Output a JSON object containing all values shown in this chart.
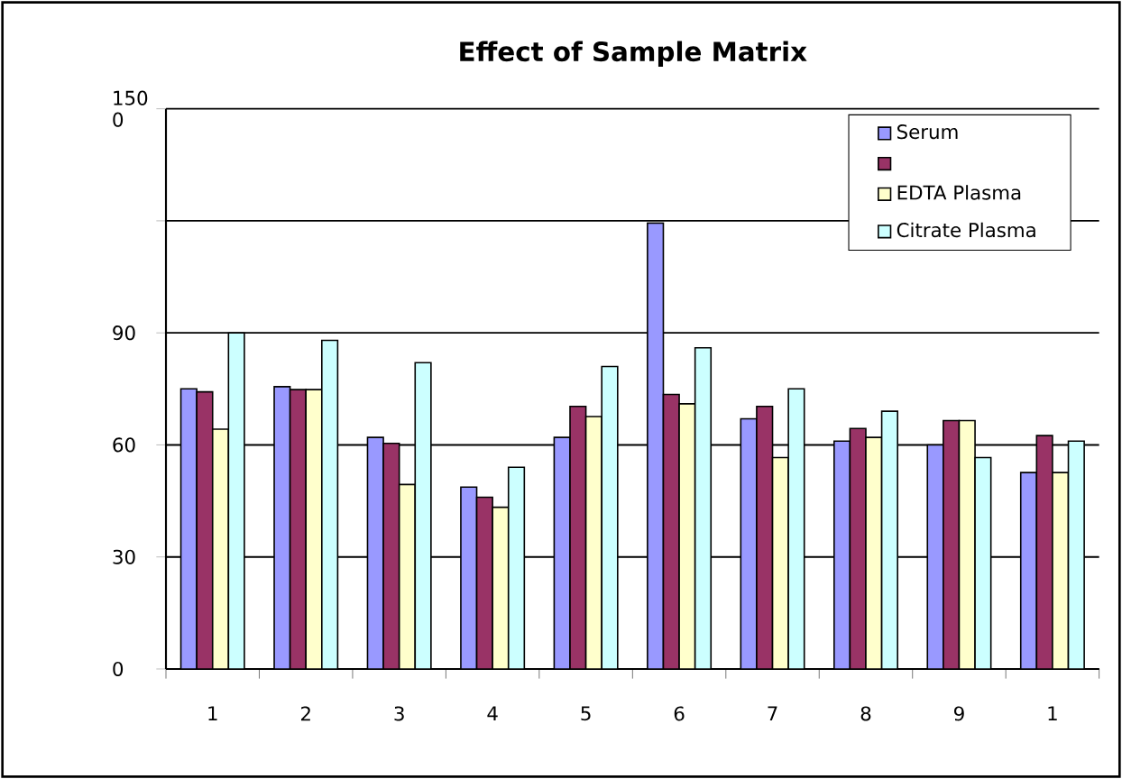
{
  "chart_data": {
    "type": "bar",
    "title": "Effect  of Sample Matrix",
    "categories": [
      "1",
      "2",
      "3",
      "4",
      "5",
      "6",
      "7",
      "8",
      "9",
      "1"
    ],
    "series": [
      {
        "name": "Serum",
        "color": "#9999ff",
        "values": [
          75,
          75.6,
          62,
          48.7,
          62,
          119.4,
          67,
          61,
          60,
          52.6
        ]
      },
      {
        "color": "#993366",
        "values": [
          74.2,
          74.8,
          60.4,
          46,
          70.3,
          73.5,
          70.3,
          64.4,
          66.5,
          62.5
        ]
      },
      {
        "name": "EDTA Plasma",
        "color": "#ffffcc",
        "values": [
          64.2,
          74.8,
          49.4,
          43.3,
          67.6,
          71,
          56.6,
          62,
          66.5,
          52.6
        ]
      },
      {
        "name": "Citrate Plasma",
        "color": "#ccffff",
        "values": [
          90,
          88,
          82,
          54,
          81,
          86,
          75,
          69,
          56.6,
          61
        ]
      }
    ],
    "ylim": [
      0,
      150
    ],
    "yticks": [
      0,
      30,
      60,
      90,
      {
        "value": 120,
        "label": null
      },
      {
        "value": 150,
        "label": "150 0"
      }
    ],
    "grid": "y",
    "legend": "top right"
  }
}
